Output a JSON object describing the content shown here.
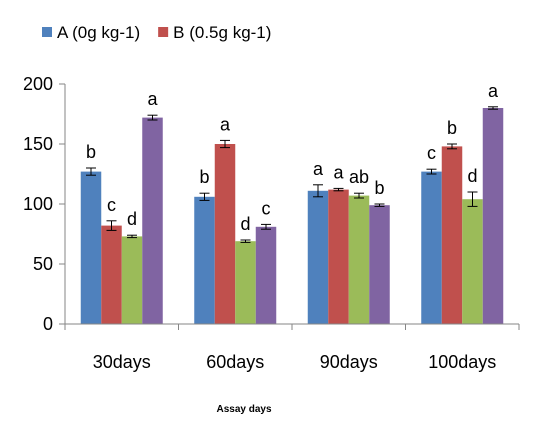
{
  "chart_data": {
    "type": "bar",
    "xlabel": "Assay days",
    "ylabel": "",
    "ylim": [
      0,
      200
    ],
    "yticks": [
      0,
      50,
      100,
      150,
      200
    ],
    "grid": false,
    "legend_position": "top-left",
    "categories": [
      "30days",
      "60days",
      "90days",
      "100days"
    ],
    "series": [
      {
        "name": "A (0g kg-1)",
        "color": "#4F81BD",
        "values": [
          127,
          106,
          111,
          127
        ],
        "errors": [
          3,
          3,
          5,
          2
        ],
        "labels": [
          "b",
          "b",
          "a",
          "c"
        ]
      },
      {
        "name": "B (0.5g kg-1)",
        "color": "#C0504D",
        "values": [
          82,
          150,
          112,
          148
        ],
        "errors": [
          4,
          3,
          1,
          2
        ],
        "labels": [
          "c",
          "a",
          "a",
          "b"
        ]
      },
      {
        "name": "",
        "color": "#9BBB59",
        "values": [
          73,
          69,
          107,
          104
        ],
        "errors": [
          1,
          1,
          2,
          6
        ],
        "labels": [
          "d",
          "d",
          "ab",
          "d"
        ]
      },
      {
        "name": "",
        "color": "#8064A2",
        "values": [
          172,
          81,
          99,
          180
        ],
        "errors": [
          2,
          2,
          1,
          1
        ],
        "labels": [
          "a",
          "c",
          "b",
          "a"
        ]
      }
    ]
  }
}
